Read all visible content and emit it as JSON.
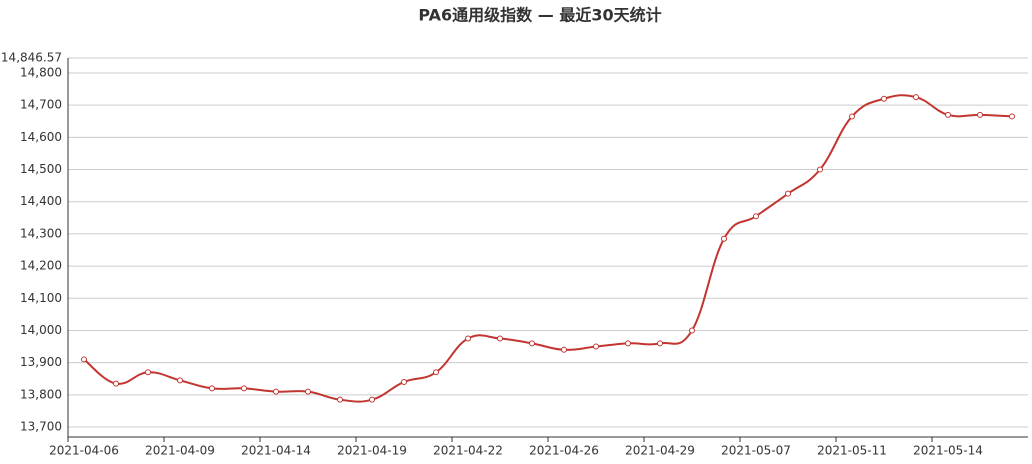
{
  "chart_data": {
    "type": "line",
    "title": "PA6通用级指数 — 最近30天统计",
    "categories": [
      "2021-04-06",
      null,
      null,
      "2021-04-09",
      null,
      null,
      "2021-04-14",
      null,
      null,
      "2021-04-19",
      null,
      null,
      "2021-04-22",
      null,
      null,
      "2021-04-26",
      null,
      null,
      "2021-04-29",
      null,
      null,
      "2021-05-07",
      null,
      null,
      "2021-05-11",
      null,
      null,
      "2021-05-14",
      null,
      null
    ],
    "series": [
      {
        "name": "PA6通用级指数",
        "color": "#c23531",
        "values": [
          13910,
          13835,
          13870,
          13845,
          13820,
          13820,
          13810,
          13810,
          13785,
          13785,
          13840,
          13870,
          13975,
          13975,
          13960,
          13940,
          13950,
          13960,
          13960,
          14000,
          14285,
          14355,
          14425,
          14500,
          14665,
          14720,
          14725,
          14670,
          14670,
          14665
        ]
      }
    ],
    "ylim": [
      13669,
      14846.57
    ],
    "yticks": [
      {
        "value": 13700,
        "label": "13,700"
      },
      {
        "value": 13800,
        "label": "13,800"
      },
      {
        "value": 13900,
        "label": "13,900"
      },
      {
        "value": 14000,
        "label": "14,000"
      },
      {
        "value": 14100,
        "label": "14,100"
      },
      {
        "value": 14200,
        "label": "14,200"
      },
      {
        "value": 14300,
        "label": "14,300"
      },
      {
        "value": 14400,
        "label": "14,400"
      },
      {
        "value": 14500,
        "label": "14,500"
      },
      {
        "value": 14600,
        "label": "14,600"
      },
      {
        "value": 14700,
        "label": "14,700"
      },
      {
        "value": 14800,
        "label": "14,800"
      },
      {
        "value": 14846.57,
        "label": "14,846.57"
      }
    ],
    "grid": true,
    "smooth": true
  }
}
